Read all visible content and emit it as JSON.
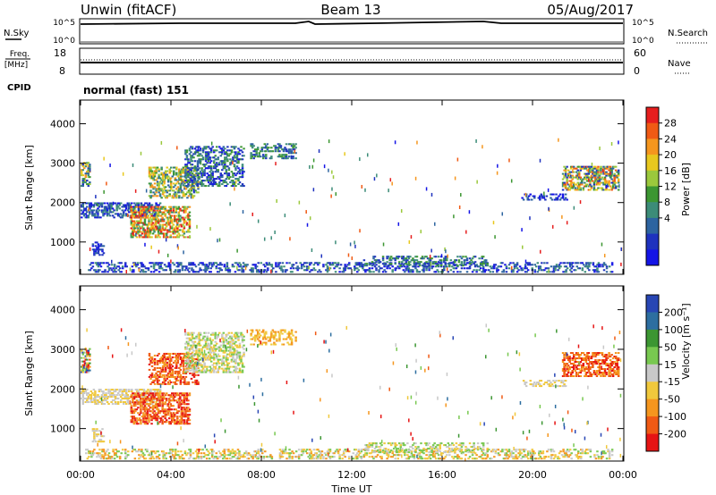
{
  "header": {
    "station": "Unwin (fitACF)",
    "beam": "Beam 13",
    "date": "05/Aug/2017"
  },
  "sky_panel": {
    "left_label": "N.Sky",
    "right_label": "N.Search",
    "left_ticks": [
      "10^5",
      "10^0"
    ],
    "right_ticks": [
      "10^5",
      "10^0"
    ]
  },
  "freq_panel": {
    "left_label_line1": "Freq.",
    "left_label_line2": "[MHz]",
    "right_label": "Nave",
    "left_ticks": [
      "18",
      "8"
    ],
    "right_ticks": [
      "60",
      "0"
    ],
    "cpid_label": "CPID",
    "mode_text": "normal (fast) 151"
  },
  "chart_data": [
    {
      "type": "heatmap",
      "title": "",
      "xlabel": "Time UT",
      "ylabel": "Slant Range [km]",
      "x_ticks": [
        "00:00",
        "04:00",
        "08:00",
        "12:00",
        "16:00",
        "20:00",
        "00:00"
      ],
      "x_range_hours": [
        0,
        24
      ],
      "ylim": [
        180,
        4600
      ],
      "y_ticks": [
        1000,
        2000,
        3000,
        4000
      ],
      "colorbar": {
        "label": "Power [dB]",
        "ticks": [
          "28",
          "24",
          "20",
          "16",
          "12",
          "8",
          "4"
        ],
        "colors": [
          "#e61e1e",
          "#f05a14",
          "#f5961e",
          "#e8c81e",
          "#9bc83c",
          "#3c9632",
          "#3c8c78",
          "#2d64a0",
          "#1e32be",
          "#1414e6"
        ]
      }
    },
    {
      "type": "heatmap",
      "title": "",
      "xlabel": "Time UT",
      "ylabel": "Slant Range [km]",
      "x_ticks": [
        "00:00",
        "04:00",
        "08:00",
        "12:00",
        "16:00",
        "20:00",
        "00:00"
      ],
      "x_range_hours": [
        0,
        24
      ],
      "ylim": [
        180,
        4600
      ],
      "y_ticks": [
        1000,
        2000,
        3000,
        4000
      ],
      "colorbar": {
        "label": "Velocity [m s⁻¹]",
        "ticks": [
          "200",
          "100",
          "50",
          "15",
          "-15",
          "-50",
          "-100",
          "-200"
        ],
        "colors": [
          "#2846b4",
          "#2d6ea0",
          "#3c9632",
          "#78c850",
          "#c8c8c8",
          "#f0c83c",
          "#f5961e",
          "#f05a14",
          "#e61414"
        ]
      }
    }
  ]
}
